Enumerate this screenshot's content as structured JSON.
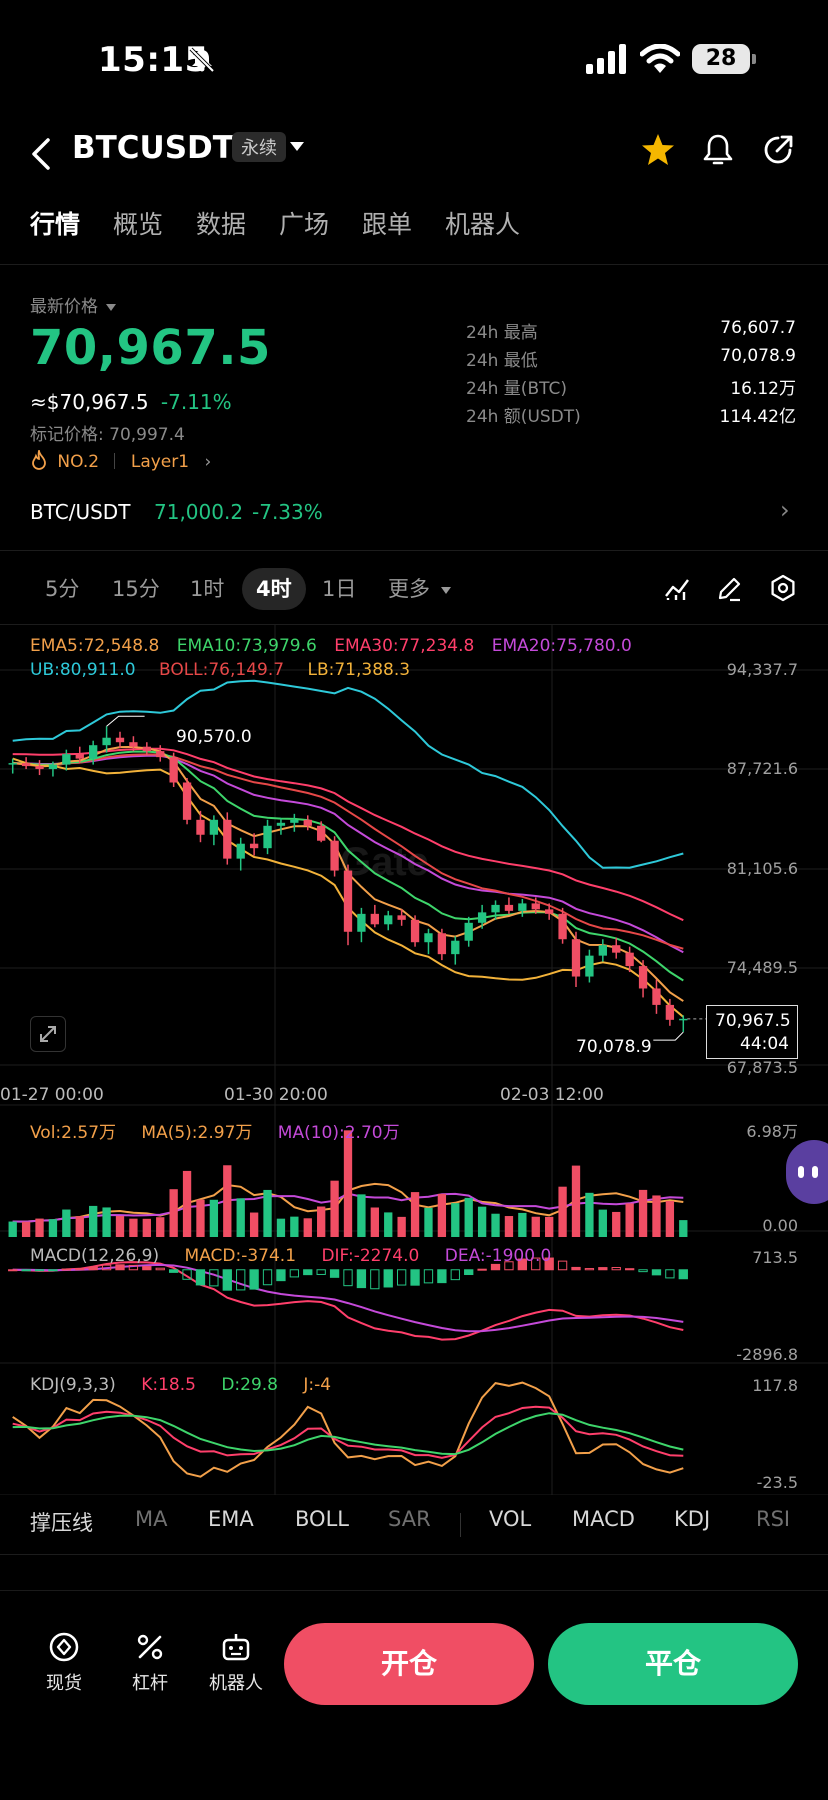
{
  "status_bar": {
    "time": "15:15",
    "battery": "28"
  },
  "header": {
    "symbol": "BTCUSDT",
    "contract_type": "永续"
  },
  "tabs": [
    "行情",
    "概览",
    "数据",
    "广场",
    "跟单",
    "机器人"
  ],
  "price_panel": {
    "latest_label": "最新价格",
    "latest_price": "70,967.5",
    "usd_equiv": "≈$70,967.5",
    "change": "-7.11%",
    "mark_price": "标记价格: 70,997.4",
    "rank": "NO.2",
    "tag": "Layer1",
    "stats": [
      {
        "k": "24h  最高",
        "v": "76,607.7"
      },
      {
        "k": "24h  最低",
        "v": "70,078.9"
      },
      {
        "k": "24h  量(BTC)",
        "v": "16.12万"
      },
      {
        "k": "24h  额(USDT)",
        "v": "114.42亿"
      }
    ],
    "spot_pair": "BTC/USDT",
    "spot_price": "71,000.2",
    "spot_change": "-7.33%"
  },
  "timeframes": [
    "5分",
    "15分",
    "1时",
    "4时",
    "1日",
    "更多"
  ],
  "chart_data": {
    "type": "candlestick",
    "indicators_line1": [
      {
        "label": "EMA5:72,548.8",
        "color": "#f2a04a"
      },
      {
        "label": "EMA10:73,979.6",
        "color": "#3ed56b"
      },
      {
        "label": "EMA30:77,234.8",
        "color": "#ff3f6b"
      },
      {
        "label": "EMA20:75,780.0",
        "color": "#c44ad9"
      }
    ],
    "indicators_line2": [
      {
        "label": "UB:80,911.0",
        "color": "#2ec9d9"
      },
      {
        "label": "BOLL:76,149.7",
        "color": "#e64848"
      },
      {
        "label": "LB:71,388.3",
        "color": "#f2b23a"
      }
    ],
    "y_ticks": [
      "94,337.7",
      "87,721.6",
      "81,105.6",
      "74,489.5",
      "67,873.5"
    ],
    "ylim": [
      67873.5,
      94337.7
    ],
    "x_ticks": [
      "01-27 00:00",
      "01-30 20:00",
      "02-03 12:00"
    ],
    "high_label": "90,570.0",
    "low_label": "70,078.9",
    "current_price": "70,967.5",
    "countdown": "44:04",
    "candles": [
      [
        88000,
        88400,
        87400,
        88100
      ],
      [
        88100,
        88500,
        87700,
        87900
      ],
      [
        87900,
        88300,
        87300,
        87700
      ],
      [
        87700,
        88200,
        87200,
        88000
      ],
      [
        88000,
        89000,
        87600,
        88700
      ],
      [
        88700,
        89200,
        88100,
        88400
      ],
      [
        88400,
        89600,
        88000,
        89300
      ],
      [
        89300,
        90570,
        88800,
        89800
      ],
      [
        89800,
        90200,
        89100,
        89500
      ],
      [
        89500,
        89900,
        88900,
        89200
      ],
      [
        89200,
        89500,
        88600,
        88900
      ],
      [
        88900,
        89300,
        88200,
        88500
      ],
      [
        88500,
        88800,
        86500,
        86800
      ],
      [
        86800,
        87100,
        84000,
        84300
      ],
      [
        84300,
        84900,
        82800,
        83300
      ],
      [
        83300,
        84600,
        82600,
        84300
      ],
      [
        84300,
        84800,
        81300,
        81700
      ],
      [
        81700,
        83100,
        80900,
        82700
      ],
      [
        82700,
        83400,
        81900,
        82400
      ],
      [
        82400,
        84300,
        82000,
        83900
      ],
      [
        83900,
        84400,
        83300,
        84100
      ],
      [
        84100,
        84700,
        83500,
        84300
      ],
      [
        84300,
        84600,
        83600,
        83900
      ],
      [
        83900,
        84200,
        82800,
        82900
      ],
      [
        82900,
        83200,
        80500,
        80900
      ],
      [
        80900,
        81300,
        75900,
        76800
      ],
      [
        76800,
        78400,
        76100,
        78000
      ],
      [
        78000,
        78600,
        77100,
        77300
      ],
      [
        77300,
        78200,
        76900,
        77900
      ],
      [
        77900,
        78300,
        77200,
        77600
      ],
      [
        77600,
        77900,
        75800,
        76100
      ],
      [
        76100,
        77000,
        75300,
        76700
      ],
      [
        76700,
        77000,
        74900,
        75300
      ],
      [
        75300,
        76500,
        74600,
        76200
      ],
      [
        76200,
        77800,
        75800,
        77400
      ],
      [
        77400,
        78600,
        77000,
        78100
      ],
      [
        78100,
        78900,
        77600,
        78600
      ],
      [
        78600,
        79100,
        78000,
        78200
      ],
      [
        78200,
        79000,
        77800,
        78700
      ],
      [
        78700,
        79100,
        78000,
        78300
      ],
      [
        78300,
        78700,
        77600,
        78000
      ],
      [
        78000,
        78400,
        76000,
        76300
      ],
      [
        76300,
        76800,
        73100,
        73800
      ],
      [
        73800,
        75600,
        73400,
        75200
      ],
      [
        75200,
        76300,
        74800,
        75900
      ],
      [
        75900,
        76400,
        75000,
        75400
      ],
      [
        75400,
        75800,
        74100,
        74500
      ],
      [
        74500,
        74900,
        72400,
        73000
      ],
      [
        73000,
        73600,
        71300,
        71900
      ],
      [
        71900,
        72300,
        70500,
        70900
      ],
      [
        70900,
        71200,
        70078.9,
        70967.5
      ]
    ],
    "volume": {
      "label": "Vol:2.57万",
      "ma5": "MA(5):2.97万",
      "ma10": "MA(10):2.70万",
      "y_ticks": [
        "6.98万",
        "0.00"
      ]
    },
    "macd": {
      "label": "MACD(12,26,9)",
      "macd": "MACD:-374.1",
      "dif": "DIF:-2274.0",
      "dea": "DEA:-1900.0",
      "y_ticks": [
        "713.5",
        "-2896.8"
      ]
    },
    "kdj": {
      "label": "KDJ(9,3,3)",
      "k": "K:18.5",
      "d": "D:29.8",
      "j": "J:-4",
      "y_ticks": [
        "117.8",
        "-23.5"
      ]
    }
  },
  "indicator_bar": [
    "撑压线",
    "MA",
    "EMA",
    "BOLL",
    "SAR",
    "VOL",
    "MACD",
    "KDJ",
    "RSI"
  ],
  "bottom_nav": {
    "spot": "现货",
    "leverage": "杠杆",
    "bot": "机器人",
    "open": "开仓",
    "close": "平仓"
  },
  "colors": {
    "up": "#23c483",
    "down": "#f04e64",
    "bg": "#000000"
  }
}
